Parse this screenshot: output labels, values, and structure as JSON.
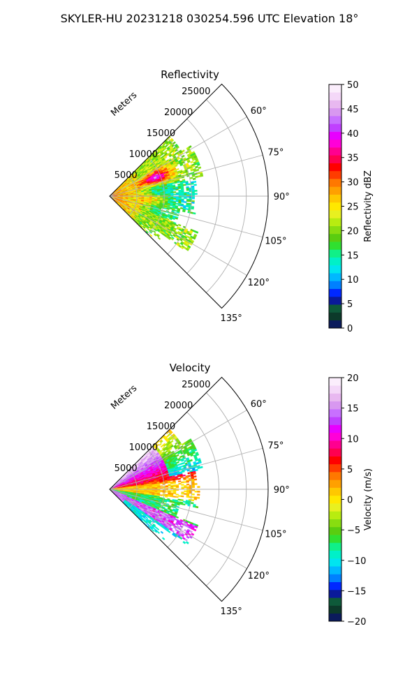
{
  "figure": {
    "suptitle": "SKYLER-HU  20231218  030254.596 UTC Elevation 18°"
  },
  "chart_data": [
    {
      "type": "heatmap",
      "projection": "polar sector",
      "title": "Reflectivity",
      "radial_axis_label": "Meters",
      "radial_ticks": [
        5000,
        10000,
        15000,
        20000,
        25000
      ],
      "radial_tick_labels": [
        "5000",
        "10000",
        "15000",
        "20000",
        "25000"
      ],
      "rmax": 29000,
      "theta_ticks": [
        60,
        75,
        90,
        105,
        120,
        135
      ],
      "theta_tick_labels": [
        "60°",
        "75°",
        "90°",
        "105°",
        "120°",
        "135°"
      ],
      "theta_range": [
        45,
        135
      ],
      "data_extent_m": 17500,
      "colorbar": {
        "label": "Reflectivity dBZ",
        "range": [
          0,
          50
        ],
        "ticks": [
          0,
          5,
          10,
          15,
          20,
          25,
          30,
          35,
          40,
          45,
          50
        ],
        "tick_labels": [
          "0",
          "5",
          "10",
          "15",
          "20",
          "25",
          "30",
          "35",
          "40",
          "45",
          "50"
        ],
        "colors": [
          "#0b1b5c",
          "#0c3a2a",
          "#0e5a3a",
          "#0a1a9a",
          "#0028ff",
          "#0080ff",
          "#00b8ff",
          "#00e5f0",
          "#00f0c8",
          "#10f088",
          "#30e030",
          "#5acd10",
          "#88dd10",
          "#b8ec10",
          "#e8f020",
          "#ffe800",
          "#ffc800",
          "#ffa000",
          "#ff7800",
          "#ff3c00",
          "#ff0000",
          "#ff0050",
          "#ff0090",
          "#ff00d8",
          "#e800ff",
          "#c040ff",
          "#c870ff",
          "#d898f0",
          "#e8b8f0",
          "#f4d8f8",
          "#fbeefc"
        ]
      },
      "structure_description": "Radar echoes within about 17.5 km; strongest reflectivity 30–40 dBZ near 5–10 km at 65–75° azimuth; weaker 10–25 dBZ echoes elsewhere."
    },
    {
      "type": "heatmap",
      "projection": "polar sector",
      "title": "Velocity",
      "radial_axis_label": "Meters",
      "radial_ticks": [
        5000,
        10000,
        15000,
        20000,
        25000
      ],
      "radial_tick_labels": [
        "5000",
        "10000",
        "15000",
        "20000",
        "25000"
      ],
      "rmax": 29000,
      "theta_ticks": [
        60,
        75,
        90,
        105,
        120,
        135
      ],
      "theta_tick_labels": [
        "60°",
        "75°",
        "90°",
        "105°",
        "120°",
        "135°"
      ],
      "theta_range": [
        45,
        135
      ],
      "data_extent_m": 17500,
      "colorbar": {
        "label": "Velocity (m/s)",
        "range": [
          -20,
          20
        ],
        "ticks": [
          -20,
          -15,
          -10,
          -5,
          0,
          5,
          10,
          15,
          20
        ],
        "tick_labels": [
          "−20",
          "−15",
          "−10",
          "−5",
          "0",
          "5",
          "10",
          "15",
          "20"
        ],
        "colors": [
          "#0b1b5c",
          "#0c3a2a",
          "#0e5a3a",
          "#0a1a9a",
          "#0028ff",
          "#0080ff",
          "#00b8ff",
          "#00e5f0",
          "#00f0c8",
          "#10f088",
          "#30e030",
          "#5acd10",
          "#88dd10",
          "#b8ec10",
          "#e8f020",
          "#ffe800",
          "#ffc800",
          "#ffa000",
          "#ff7800",
          "#ff3c00",
          "#ff0000",
          "#ff0050",
          "#ff0090",
          "#ff00d8",
          "#e800ff",
          "#c040ff",
          "#c870ff",
          "#d898f0",
          "#e8b8f0",
          "#f4d8f8",
          "#fbeefc"
        ]
      },
      "structure_description": "Positive velocities (+5 to +15 m/s) in a northern band at 60–78°, near-zero yellow along 85–95°, negative (−10 m/s) cyan/green in the middle sector, and positive red/magenta near 115–125°."
    }
  ]
}
